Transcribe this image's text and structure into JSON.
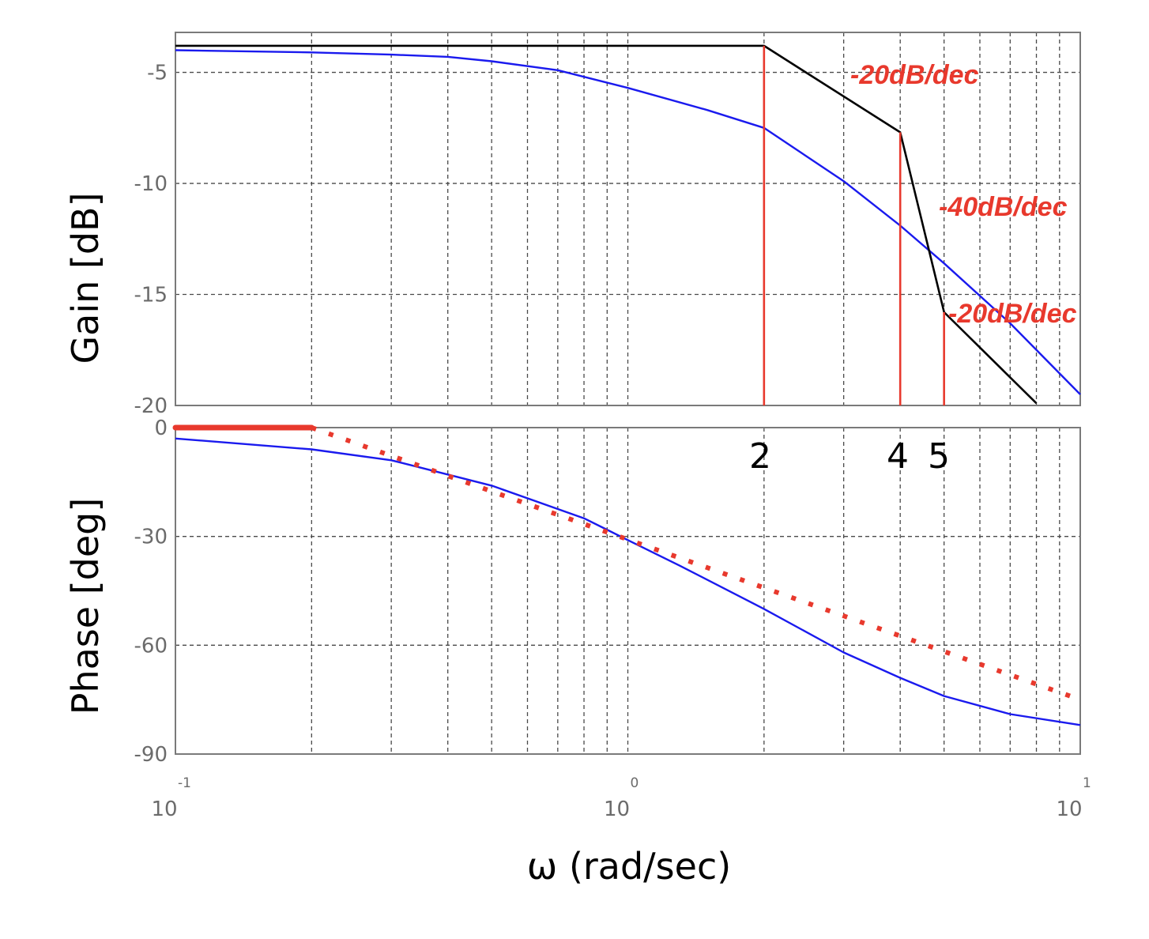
{
  "chart_data": [
    {
      "type": "line",
      "panel": "gain",
      "xlabel": "ω (rad/sec)",
      "ylabel": "Gain [dB]",
      "xscale": "log",
      "xlim": [
        0.1,
        10
      ],
      "ylim": [
        -20,
        -3.2
      ],
      "yticks": [
        "-5",
        "-10",
        "-15",
        "-20"
      ],
      "grid": true,
      "series": [
        {
          "role": "exact",
          "color": "#1a1aee",
          "x": [
            0.1,
            0.2,
            0.3,
            0.4,
            0.5,
            0.7,
            1.0,
            1.5,
            2.0,
            3.0,
            4.0,
            5.0,
            7.0,
            10.0
          ],
          "values": [
            -4.0,
            -4.1,
            -4.2,
            -4.3,
            -4.5,
            -4.9,
            -5.7,
            -6.7,
            -7.5,
            -9.9,
            -11.9,
            -13.6,
            -16.3,
            -19.5
          ]
        },
        {
          "role": "asymptote",
          "color": "#000000",
          "x": [
            0.1,
            2.0,
            4.0,
            5.0,
            8.0
          ],
          "values": [
            -3.8,
            -3.8,
            -7.7,
            -15.8,
            -19.9
          ]
        }
      ],
      "corner_markers": {
        "color": "#e8392d",
        "x": [
          2,
          4,
          5
        ]
      },
      "annotations": [
        {
          "text": "-20dB/dec",
          "segment": "2-4"
        },
        {
          "text": "-40dB/dec",
          "segment": "4-5"
        },
        {
          "text": "-20dB/dec",
          "segment": "5+"
        }
      ]
    },
    {
      "type": "line",
      "panel": "phase",
      "xlabel": "ω (rad/sec)",
      "ylabel": "Phase [deg]",
      "xscale": "log",
      "xlim": [
        0.1,
        10
      ],
      "ylim": [
        -90,
        0
      ],
      "yticks": [
        "0",
        "-30",
        "-60",
        "-90"
      ],
      "xticks": [
        {
          "base": "10",
          "exp": "-1"
        },
        {
          "base": "10",
          "exp": "0"
        },
        {
          "base": "10",
          "exp": "1"
        }
      ],
      "grid": true,
      "series": [
        {
          "role": "exact",
          "color": "#1a1aee",
          "x": [
            0.1,
            0.2,
            0.3,
            0.5,
            0.8,
            1.0,
            1.3,
            2.0,
            3.0,
            4.0,
            5.0,
            7.0,
            10.0
          ],
          "values": [
            -3,
            -6,
            -9,
            -16,
            -25,
            -31,
            -38,
            -50,
            -62,
            -69,
            -74,
            -79,
            -82
          ]
        },
        {
          "role": "asymptote-flat",
          "color": "#e8392d",
          "x": [
            0.1,
            0.2
          ],
          "values": [
            0,
            0
          ]
        },
        {
          "role": "asymptote-sloped",
          "color": "#e8392d",
          "x": [
            0.2,
            10.0
          ],
          "values": [
            0,
            -75
          ]
        }
      ]
    }
  ],
  "labels": {
    "gain_ylabel": "Gain [dB]",
    "phase_ylabel": "Phase [deg]",
    "xlabel": "ω (rad/sec)",
    "slope_a": "-20dB/dec",
    "slope_b": "-40dB/dec",
    "slope_c": "-20dB/dec",
    "corner_2": "2",
    "corner_4": "4",
    "corner_5": "5"
  },
  "colors": {
    "slope_label": "#e8392d",
    "grid": "#4a4a4a",
    "tick_label": "#6b6b6b"
  }
}
